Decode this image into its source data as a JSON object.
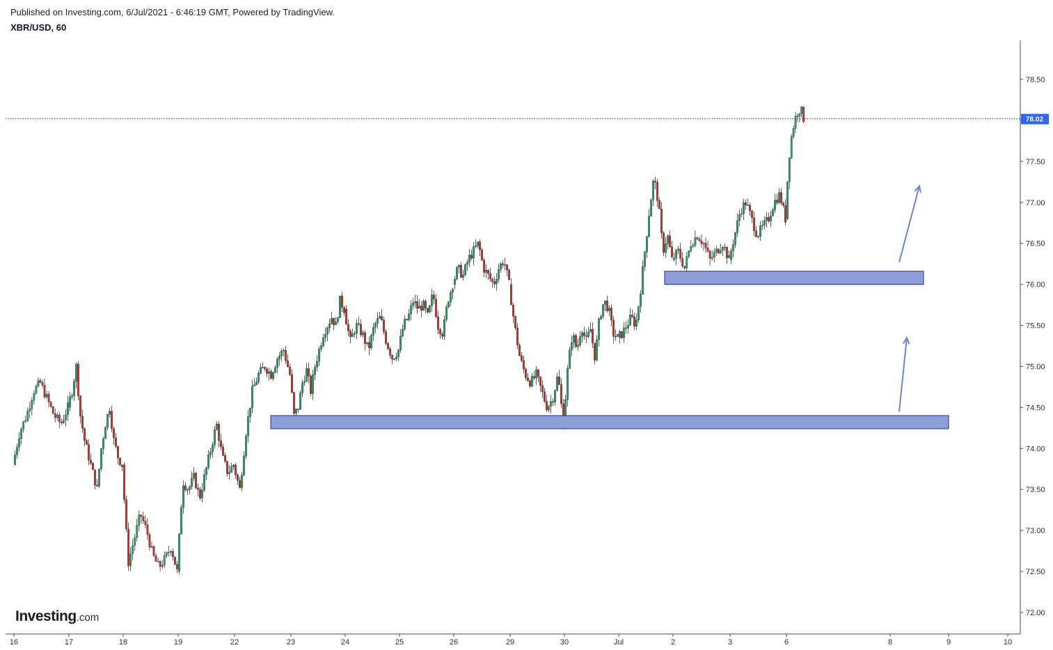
{
  "header": {
    "published": "Published on Investing.com, 6/Jul/2021 - 6:46:19 GMT, Powered by TradingView.",
    "symbol": "XBR/USD, 60"
  },
  "logo": {
    "main": "Investing",
    "suffix": ".com"
  },
  "colors": {
    "up": "#2e9e6a",
    "down": "#c0342d",
    "zone_fill": "#8d9fd6",
    "zone_stroke": "#1a2f8a",
    "arrow": "#6f86c2",
    "price_tag": "#3366ee"
  },
  "chart_data": {
    "type": "candlestick",
    "symbol": "XBR/USD",
    "interval": "60",
    "current_price": 78.02,
    "current_price_label": "78.02",
    "y_ticks": [
      "72.00",
      "72.50",
      "73.00",
      "73.50",
      "74.00",
      "74.50",
      "75.00",
      "75.50",
      "76.00",
      "76.50",
      "77.00",
      "77.50",
      "78.00",
      "78.50"
    ],
    "x_ticks": [
      "16",
      "17",
      "18",
      "19",
      "22",
      "23",
      "24",
      "25",
      "26",
      "29",
      "30",
      "Jul",
      "2",
      "3",
      "6",
      "8",
      "9",
      "10"
    ],
    "y_range": [
      71.75,
      79.0
    ],
    "zones": [
      {
        "from_label": "22",
        "to_label": "9",
        "low": 74.24,
        "high": 74.4
      },
      {
        "from_label": "2",
        "to_label": "8",
        "low": 76.0,
        "high": 76.16
      }
    ],
    "arrows": [
      {
        "at_label": "8",
        "from": 74.45,
        "to": 75.35
      },
      {
        "at_label": "8",
        "from": 76.27,
        "to": 77.2
      }
    ],
    "series": [
      {
        "date": "16",
        "path": [
          73.8,
          74.2,
          74.4,
          74.7,
          74.8,
          74.6,
          74.4,
          74.3,
          74.5
        ]
      },
      {
        "date": "17",
        "path": [
          74.5,
          74.7,
          75.0,
          74.4,
          74.1,
          73.9,
          73.7,
          73.5,
          74.0,
          74.3,
          74.5,
          74.1,
          73.9,
          73.8
        ]
      },
      {
        "date": "18",
        "path": [
          73.8,
          72.6,
          72.9,
          73.2,
          73.0,
          72.7,
          72.55,
          72.65,
          72.8,
          72.5
        ]
      },
      {
        "date": "19",
        "path": [
          72.5,
          73.6,
          73.5,
          73.65,
          73.4,
          73.7,
          74.0,
          74.3,
          73.9,
          73.7,
          73.8
        ]
      },
      {
        "date": "22",
        "path": [
          73.8,
          73.5,
          74.2,
          74.7,
          74.9,
          75.0,
          74.9,
          75.1,
          75.2,
          74.9
        ]
      },
      {
        "date": "23",
        "path": [
          74.9,
          74.4,
          74.5,
          74.8,
          74.95,
          74.7,
          75.0,
          75.2,
          75.4,
          75.5,
          75.6,
          75.5,
          75.8,
          75.7
        ]
      },
      {
        "date": "24",
        "path": [
          75.7,
          75.3,
          75.5,
          75.4,
          75.2,
          75.5,
          75.6,
          75.3,
          75.1,
          75.2
        ]
      },
      {
        "date": "25",
        "path": [
          75.2,
          75.5,
          75.6,
          75.8,
          75.7,
          75.75,
          75.6,
          75.9,
          75.5,
          75.4,
          75.8,
          76.0
        ]
      },
      {
        "date": "26",
        "path": [
          76.0,
          76.2,
          76.1,
          76.3,
          76.4,
          76.5,
          76.2,
          76.1,
          76.0,
          76.2,
          76.3,
          76.0
        ]
      },
      {
        "date": "29",
        "path": [
          76.0,
          75.5,
          75.1,
          74.9,
          74.8,
          74.9,
          74.7,
          74.5,
          74.6,
          74.9,
          74.3
        ]
      },
      {
        "date": "30",
        "path": [
          74.3,
          75.0,
          75.4,
          75.2,
          75.5,
          75.3,
          75.45,
          75.1,
          75.6,
          75.8,
          75.7,
          75.4,
          75.35
        ]
      },
      {
        "date": "Jul",
        "path": [
          75.35,
          75.4,
          75.5,
          75.6,
          75.5,
          75.9,
          76.4,
          76.9,
          77.3,
          77.0,
          76.4,
          76.6,
          76.3
        ]
      },
      {
        "date": "2",
        "path": [
          76.3,
          76.4,
          76.2,
          76.5,
          76.6,
          76.5,
          76.3,
          76.4,
          76.5,
          76.3
        ]
      },
      {
        "date": "3",
        "path": [
          76.3,
          76.6,
          76.9,
          77.0,
          76.8,
          76.6,
          76.7,
          76.8,
          77.0,
          77.1,
          76.8
        ]
      },
      {
        "date": "6",
        "path": [
          76.8,
          77.5,
          77.8,
          78.0,
          78.1,
          78.15,
          78.02
        ]
      }
    ]
  }
}
